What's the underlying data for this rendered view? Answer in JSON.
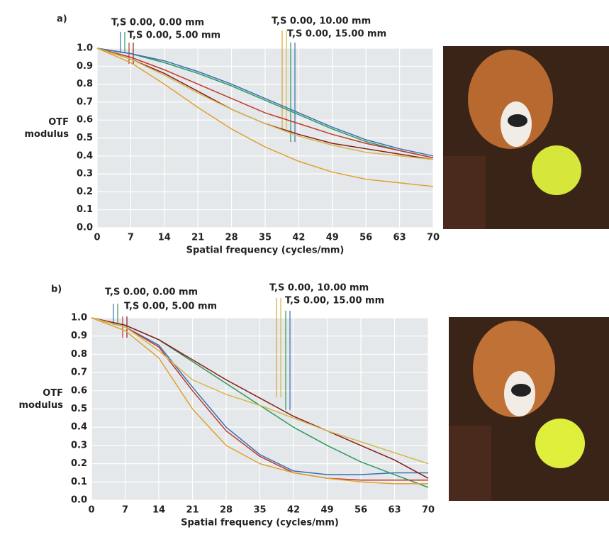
{
  "chart_data": [
    {
      "type": "line",
      "title": "a)",
      "annotations": [
        "T,S 0.00,  0.00 mm",
        "T,S 0.00,  5.00 mm",
        "T,S 0.00,  10.00 mm",
        "T,S 0.00,  15.00 mm"
      ],
      "x": [
        0,
        7,
        14,
        21,
        28,
        35,
        42,
        49,
        56,
        63,
        70
      ],
      "series": [
        {
          "color": "#2e9a5a",
          "values": [
            1.0,
            0.97,
            0.92,
            0.86,
            0.79,
            0.71,
            0.63,
            0.55,
            0.48,
            0.43,
            0.39
          ]
        },
        {
          "color": "#3a6fb5",
          "values": [
            1.0,
            0.97,
            0.93,
            0.87,
            0.8,
            0.72,
            0.64,
            0.56,
            0.49,
            0.44,
            0.4
          ]
        },
        {
          "color": "#c0392b",
          "values": [
            1.0,
            0.95,
            0.88,
            0.8,
            0.72,
            0.64,
            0.58,
            0.52,
            0.47,
            0.43,
            0.39
          ]
        },
        {
          "color": "#8b1a1a",
          "values": [
            1.0,
            0.94,
            0.86,
            0.76,
            0.66,
            0.58,
            0.52,
            0.47,
            0.44,
            0.41,
            0.38
          ]
        },
        {
          "color": "#e0a030",
          "values": [
            1.0,
            0.92,
            0.8,
            0.67,
            0.55,
            0.45,
            0.37,
            0.31,
            0.27,
            0.25,
            0.23
          ]
        },
        {
          "color": "#d4b84a",
          "values": [
            1.0,
            0.94,
            0.85,
            0.75,
            0.66,
            0.58,
            0.51,
            0.46,
            0.42,
            0.4,
            0.38
          ]
        }
      ],
      "xlabel": "Spatial frequency (cycles/mm)",
      "ylabel": [
        "OTF",
        "modulus"
      ],
      "xlim": [
        0,
        70
      ],
      "ylim": [
        0,
        1
      ],
      "xticks": [
        0,
        7,
        14,
        21,
        28,
        35,
        42,
        49,
        56,
        63,
        70
      ],
      "yticks": [
        {
          "value": 0,
          "label": "0.0"
        },
        0.1,
        0.2,
        0.3,
        0.4,
        0.5,
        0.6,
        0.7,
        0.8,
        0.9,
        {
          "value": 1,
          "label": "1.0"
        }
      ],
      "grid": true
    },
    {
      "type": "line",
      "title": "b)",
      "annotations": [
        "T,S 0.00,  0.00 mm",
        "T,S 0.00,  5.00 mm",
        "T,S 0.00,  10.00 mm",
        "T,S 0.00,  15.00 mm"
      ],
      "x": [
        0,
        7,
        14,
        21,
        28,
        35,
        42,
        49,
        56,
        63,
        70
      ],
      "series": [
        {
          "color": "#3a6fb5",
          "values": [
            1.0,
            0.95,
            0.85,
            0.62,
            0.4,
            0.25,
            0.16,
            0.14,
            0.14,
            0.15,
            0.15
          ]
        },
        {
          "color": "#2e9a5a",
          "values": [
            1.0,
            0.96,
            0.88,
            0.76,
            0.64,
            0.52,
            0.4,
            0.3,
            0.21,
            0.14,
            0.07
          ]
        },
        {
          "color": "#c0392b",
          "values": [
            1.0,
            0.95,
            0.84,
            0.6,
            0.38,
            0.24,
            0.15,
            0.12,
            0.11,
            0.11,
            0.11
          ]
        },
        {
          "color": "#8b1a1a",
          "values": [
            1.0,
            0.96,
            0.88,
            0.77,
            0.66,
            0.56,
            0.46,
            0.38,
            0.3,
            0.22,
            0.12
          ]
        },
        {
          "color": "#e0a030",
          "values": [
            1.0,
            0.93,
            0.78,
            0.5,
            0.3,
            0.2,
            0.15,
            0.12,
            0.1,
            0.09,
            0.09
          ]
        },
        {
          "color": "#d4b84a",
          "values": [
            1.0,
            0.95,
            0.82,
            0.66,
            0.58,
            0.52,
            0.45,
            0.38,
            0.32,
            0.26,
            0.2
          ]
        }
      ],
      "xlabel": "Spatial frequency (cycles/mm)",
      "ylabel": [
        "OTF",
        "modulus"
      ],
      "xlim": [
        0,
        70
      ],
      "ylim": [
        0,
        1
      ],
      "xticks": [
        0,
        7,
        14,
        21,
        28,
        35,
        42,
        49,
        56,
        63,
        70
      ],
      "yticks": [
        {
          "value": 0,
          "label": "0.0"
        },
        0.1,
        0.2,
        0.3,
        0.4,
        0.5,
        0.6,
        0.7,
        0.8,
        0.9,
        {
          "value": 1,
          "label": "1.0"
        }
      ],
      "grid": true
    }
  ]
}
